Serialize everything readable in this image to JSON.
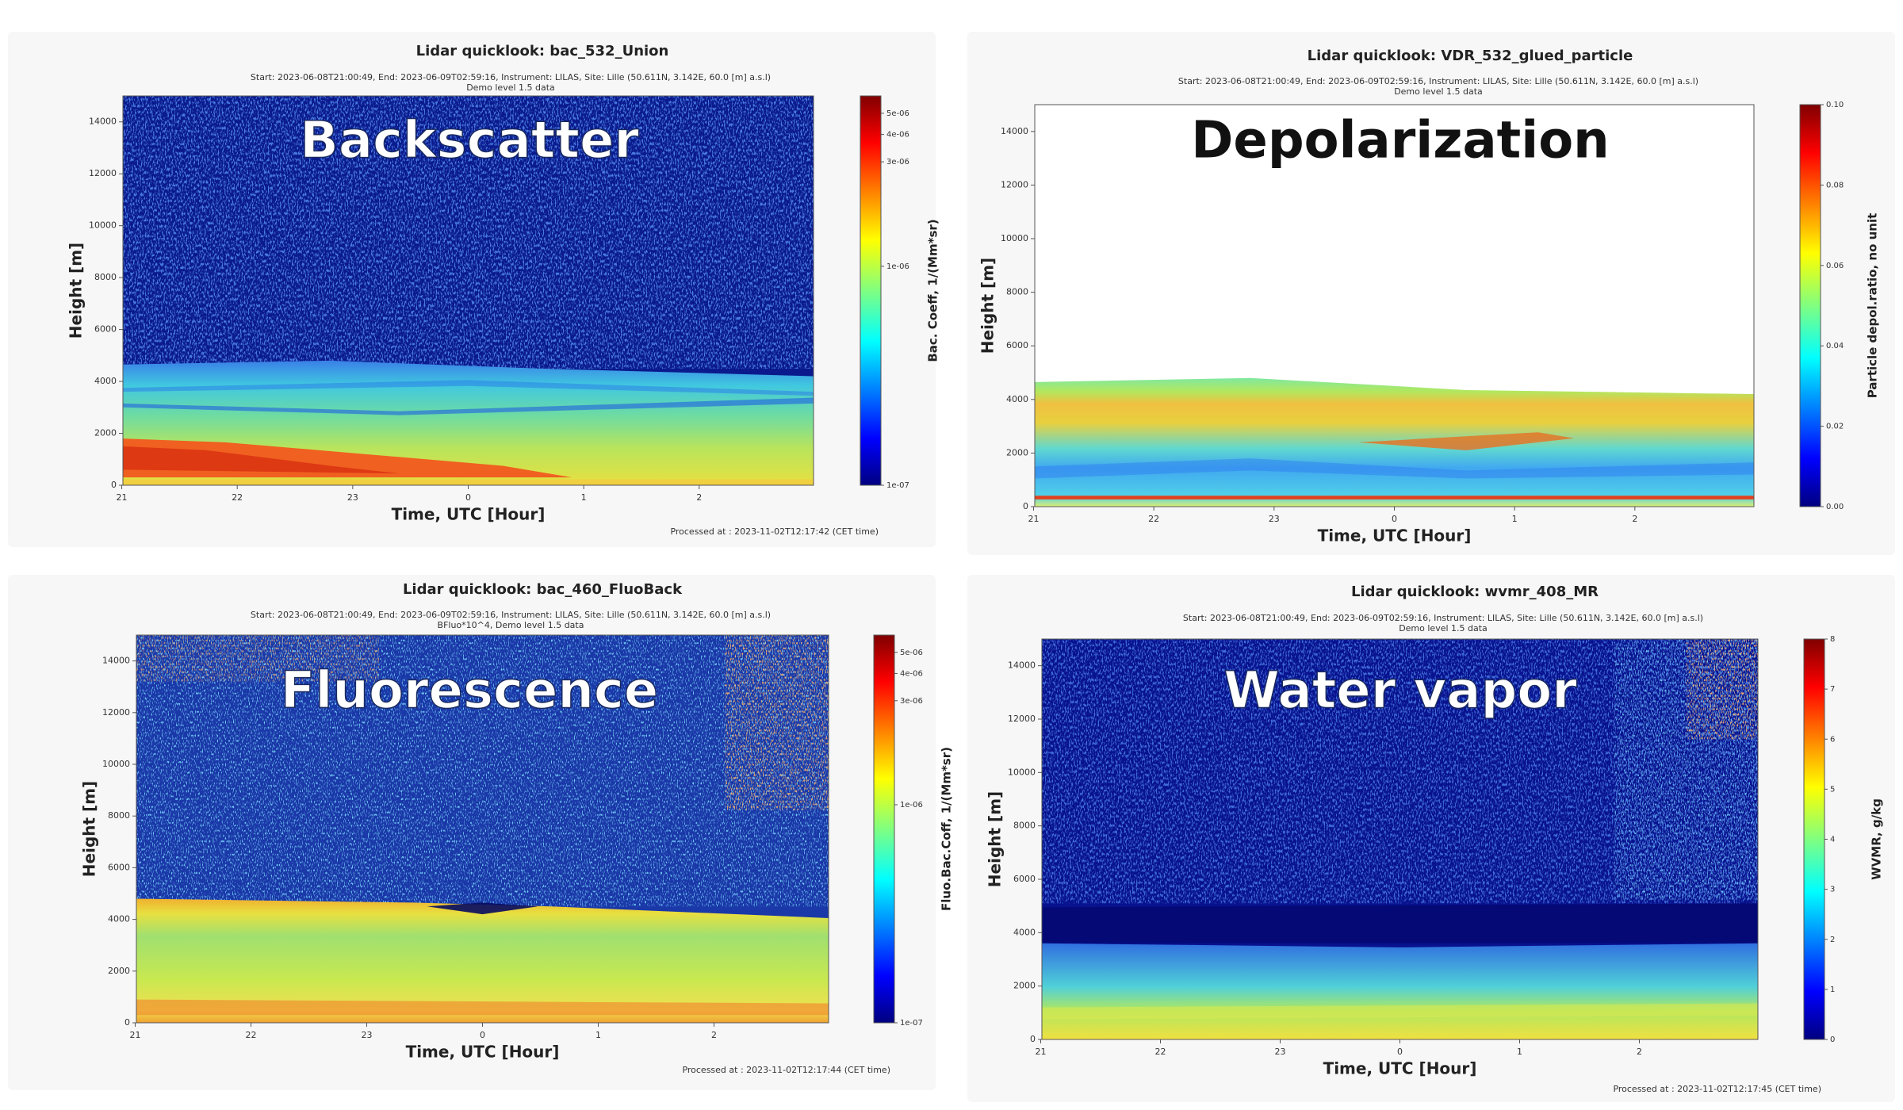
{
  "chart_data": [
    {
      "type": "heatmap",
      "title": "Lidar quicklook: bac_532_Union",
      "subtitle": [
        "Start: 2023-06-08T21:00:49, End: 2023-06-09T02:59:16, Instrument: LILAS, Site: Lille (50.611N, 3.142E, 60.0 [m] a.s.l)",
        "Demo level 1.5 data"
      ],
      "label": "Backscatter",
      "xlabel": "Time, UTC [Hour]",
      "ylabel": "Height [m]",
      "colorbar_label": "Bac. Coeff, 1/(Mm*sr)",
      "footer": "Processed at : 2023-11-02T12:17:42 (CET time)",
      "xlim": [
        21.01,
        26.99
      ],
      "xticks": [
        21,
        22,
        23,
        {
          "value": 24,
          "label": "0"
        },
        {
          "value": 25,
          "label": "1"
        },
        {
          "value": 26,
          "label": "2"
        }
      ],
      "ylim": [
        0,
        15000
      ],
      "yticks": [
        0,
        2000,
        4000,
        6000,
        8000,
        10000,
        12000,
        14000
      ],
      "colormap": "jet",
      "cscale": "log",
      "clim": [
        1e-07,
        6e-06
      ],
      "cticks": [
        {
          "value": 1e-07,
          "label": "1e-07"
        },
        {
          "value": 1e-06,
          "label": "1e-06"
        },
        {
          "value": 3e-06,
          "label": "3e-06"
        },
        {
          "value": 4e-06,
          "label": "4e-06"
        },
        {
          "value": 5e-06,
          "label": "5e-06"
        }
      ]
    },
    {
      "type": "heatmap",
      "title": "Lidar quicklook: VDR_532_glued_particle",
      "subtitle": [
        "Start: 2023-06-08T21:00:49, End: 2023-06-09T02:59:16, Instrument: LILAS, Site: Lille (50.611N, 3.142E, 60.0 [m] a.s.l)",
        "Demo level 1.5 data"
      ],
      "label": "Depolarization",
      "xlabel": "Time, UTC [Hour]",
      "ylabel": "Height [m]",
      "colorbar_label": "Particle depol.ratio, no unit",
      "xlim": [
        21.01,
        26.99
      ],
      "xticks": [
        21,
        22,
        23,
        {
          "value": 24,
          "label": "0"
        },
        {
          "value": 25,
          "label": "1"
        },
        {
          "value": 26,
          "label": "2"
        }
      ],
      "ylim": [
        0,
        15000
      ],
      "yticks": [
        0,
        2000,
        4000,
        6000,
        8000,
        10000,
        12000,
        14000
      ],
      "colormap": "jet",
      "cscale": "linear",
      "clim": [
        0,
        0.1
      ],
      "cticks": [
        {
          "value": 0,
          "label": "0.00"
        },
        0.02,
        0.04,
        0.06,
        0.08,
        {
          "value": 0.1,
          "label": "0.10"
        }
      ]
    },
    {
      "type": "heatmap",
      "title": "Lidar quicklook: bac_460_FluoBack",
      "subtitle": [
        "Start: 2023-06-08T21:00:49, End: 2023-06-09T02:59:16, Instrument: LILAS, Site: Lille (50.611N, 3.142E, 60.0 [m] a.s.l)",
        "BFluo*10^4, Demo level 1.5 data"
      ],
      "label": "Fluorescence",
      "xlabel": "Time, UTC [Hour]",
      "ylabel": "Height [m]",
      "colorbar_label": "Fluo.Bac.Coff, 1/(Mm*sr)",
      "footer": "Processed at : 2023-11-02T12:17:44 (CET time)",
      "xlim": [
        21.01,
        26.99
      ],
      "xticks": [
        21,
        22,
        23,
        {
          "value": 24,
          "label": "0"
        },
        {
          "value": 25,
          "label": "1"
        },
        {
          "value": 26,
          "label": "2"
        }
      ],
      "ylim": [
        0,
        15000
      ],
      "yticks": [
        0,
        2000,
        4000,
        6000,
        8000,
        10000,
        12000,
        14000
      ],
      "colormap": "jet",
      "cscale": "log",
      "clim": [
        1e-07,
        6e-06
      ],
      "cticks": [
        {
          "value": 1e-07,
          "label": "1e-07"
        },
        {
          "value": 1e-06,
          "label": "1e-06"
        },
        {
          "value": 3e-06,
          "label": "3e-06"
        },
        {
          "value": 4e-06,
          "label": "4e-06"
        },
        {
          "value": 5e-06,
          "label": "5e-06"
        }
      ]
    },
    {
      "type": "heatmap",
      "title": "Lidar quicklook: wvmr_408_MR",
      "subtitle": [
        "Start: 2023-06-08T21:00:49, End: 2023-06-09T02:59:16, Instrument: LILAS, Site: Lille (50.611N, 3.142E, 60.0 [m] a.s.l)",
        "Demo level 1.5 data"
      ],
      "label": "Water vapor",
      "xlabel": "Time, UTC [Hour]",
      "ylabel": "Height [m]",
      "colorbar_label": "WVMR, g/kg",
      "footer": "Processed at : 2023-11-02T12:17:45 (CET time)",
      "xlim": [
        21.01,
        26.99
      ],
      "xticks": [
        21,
        22,
        23,
        {
          "value": 24,
          "label": "0"
        },
        {
          "value": 25,
          "label": "1"
        },
        {
          "value": 26,
          "label": "2"
        }
      ],
      "ylim": [
        0,
        15000
      ],
      "yticks": [
        0,
        2000,
        4000,
        6000,
        8000,
        10000,
        12000,
        14000
      ],
      "colormap": "jet",
      "cscale": "linear",
      "clim": [
        0,
        8
      ],
      "cticks": [
        0,
        1,
        2,
        3,
        4,
        5,
        6,
        7,
        8
      ]
    }
  ]
}
